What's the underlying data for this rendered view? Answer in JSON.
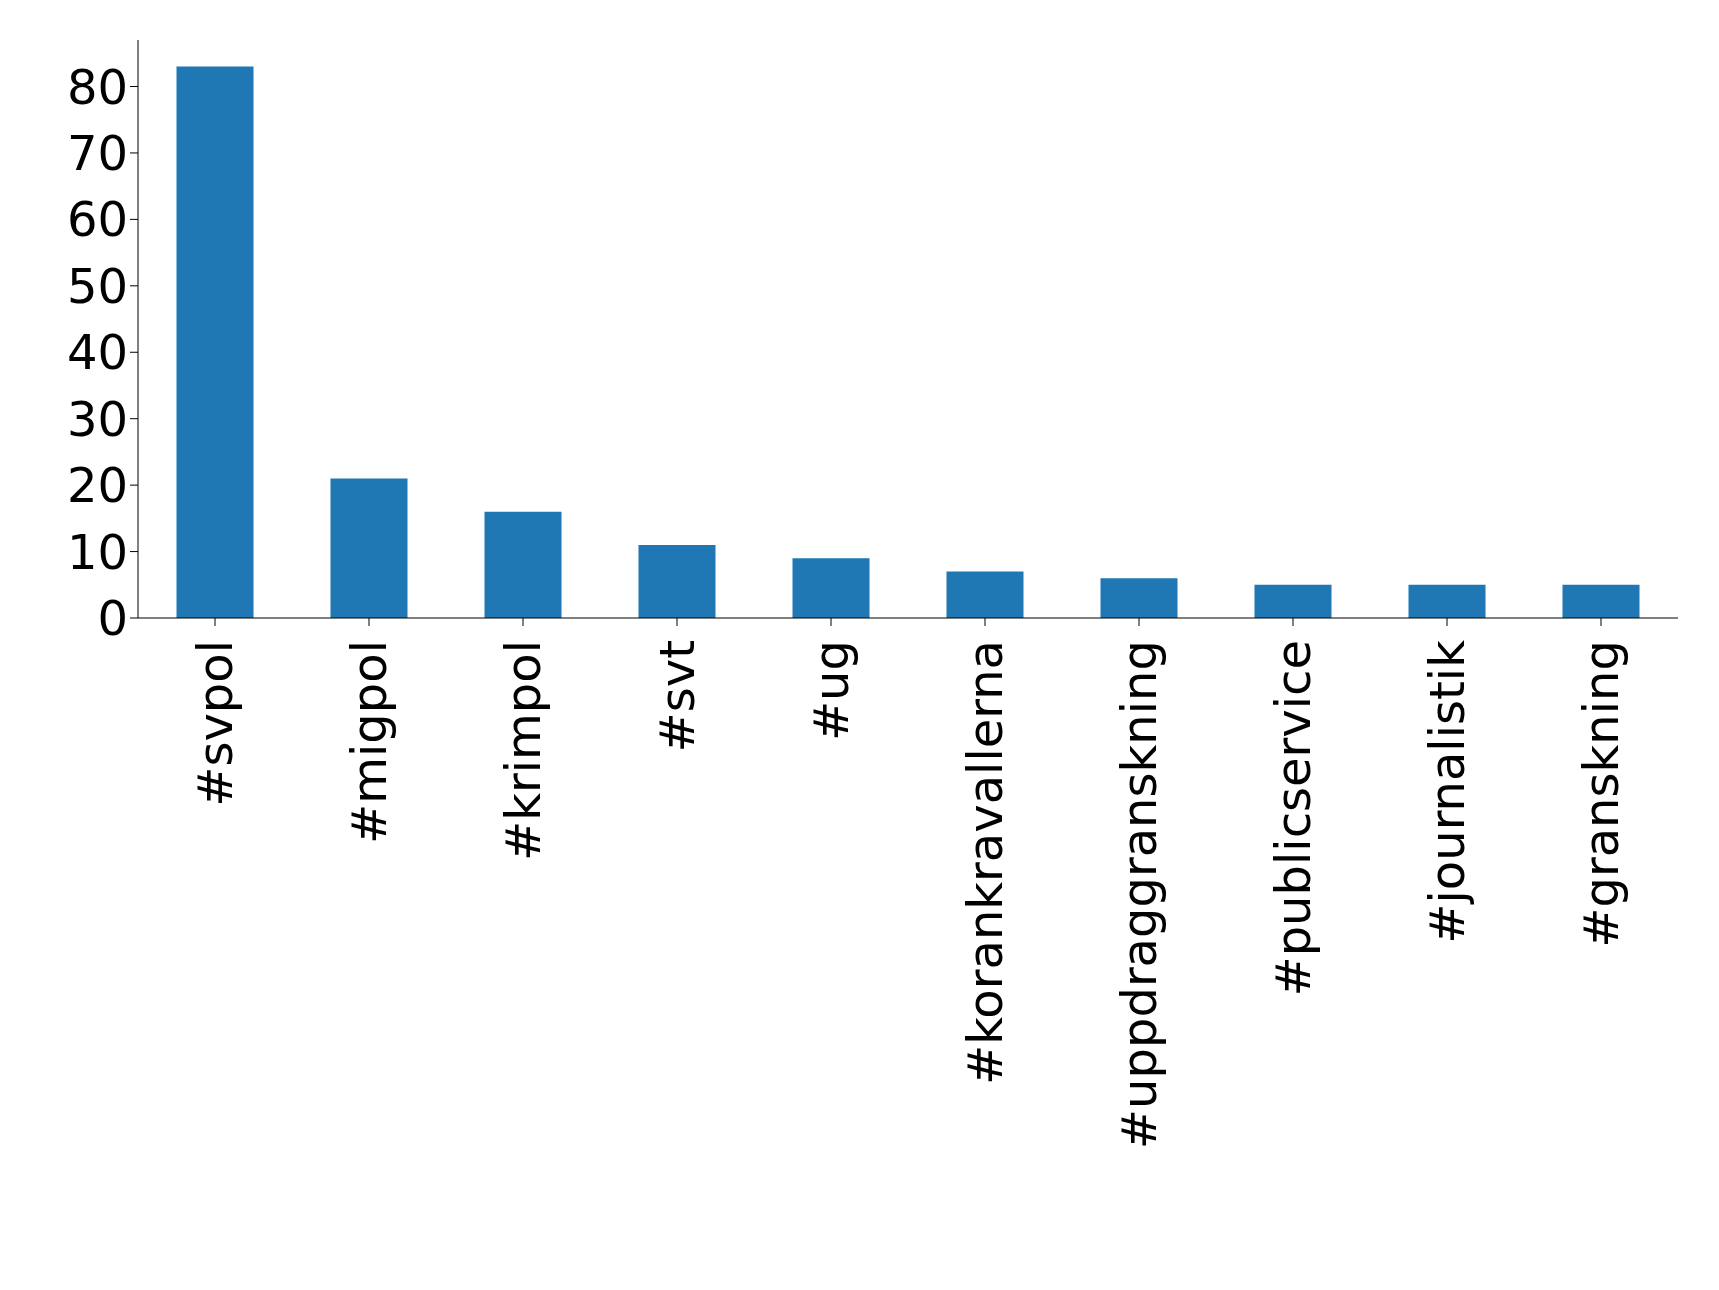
{
  "chart_data": {
    "type": "bar",
    "categories": [
      "#svpol",
      "#migpol",
      "#krimpol",
      "#svt",
      "#ug",
      "#korankravallerna",
      "#uppdraggranskning",
      "#publicservice",
      "#journalistik",
      "#granskning"
    ],
    "values": [
      83,
      21,
      16,
      11,
      9,
      7,
      6,
      5,
      5,
      5
    ],
    "color": "#1f77b4",
    "ylim": [
      0,
      87
    ],
    "yticks": [
      0,
      10,
      20,
      30,
      40,
      50,
      60,
      70,
      80
    ],
    "grid": false,
    "legend": false
  }
}
